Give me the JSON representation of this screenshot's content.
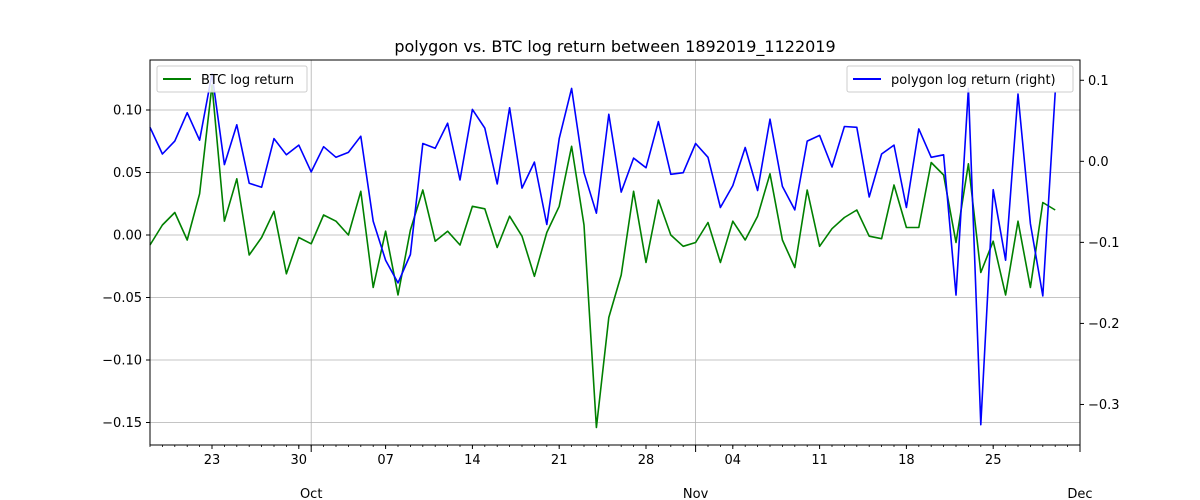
{
  "chart_data": {
    "type": "line",
    "title": "polygon vs. BTC log return between 1892019_1122019",
    "x_start_date": "2019-09-18",
    "x_end_date": "2019-12-02",
    "x_major_ticks": [
      {
        "label": "Oct",
        "date": "2019-10-01"
      },
      {
        "label": "Nov",
        "date": "2019-11-01"
      },
      {
        "label": "Dec",
        "date": "2019-12-02"
      }
    ],
    "x_minor_tick_labels": [
      {
        "label": "23",
        "date": "2019-09-23"
      },
      {
        "label": "30",
        "date": "2019-09-30"
      },
      {
        "label": "07",
        "date": "2019-10-07"
      },
      {
        "label": "14",
        "date": "2019-10-14"
      },
      {
        "label": "21",
        "date": "2019-10-21"
      },
      {
        "label": "28",
        "date": "2019-10-28"
      },
      {
        "label": "04",
        "date": "2019-11-04"
      },
      {
        "label": "11",
        "date": "2019-11-11"
      },
      {
        "label": "18",
        "date": "2019-11-18"
      },
      {
        "label": "25",
        "date": "2019-11-25"
      }
    ],
    "y_left": {
      "ylim": [
        -0.168,
        0.14
      ],
      "ticks": [
        0.1,
        0.05,
        0.0,
        -0.05,
        -0.1,
        -0.15
      ],
      "tick_labels": [
        "0.10",
        "0.05",
        "0.00",
        "−0.05",
        "−0.10",
        "−0.15"
      ]
    },
    "y_right": {
      "ylim": [
        -0.35,
        0.125
      ],
      "ticks": [
        0.1,
        0.0,
        -0.1,
        -0.2,
        -0.3
      ],
      "tick_labels": [
        "0.1",
        "0.0",
        "−0.1",
        "−0.2",
        "−0.3"
      ]
    },
    "grid": true,
    "series": [
      {
        "name": "BTC log return",
        "axis": "left",
        "color": "#008000",
        "legend_position": "upper left",
        "start_date": "2019-09-18",
        "values": [
          -0.008,
          0.008,
          0.018,
          -0.004,
          0.033,
          0.12,
          0.011,
          0.045,
          -0.016,
          -0.002,
          0.019,
          -0.031,
          -0.002,
          -0.007,
          0.016,
          0.011,
          0.0,
          0.035,
          -0.042,
          0.003,
          -0.048,
          0.004,
          0.036,
          -0.005,
          0.003,
          -0.008,
          0.023,
          0.021,
          -0.01,
          0.015,
          -0.001,
          -0.033,
          0.002,
          0.023,
          0.071,
          0.008,
          -0.154,
          -0.066,
          -0.032,
          0.035,
          -0.022,
          0.028,
          0.0,
          -0.009,
          -0.006,
          0.01,
          -0.022,
          0.011,
          -0.004,
          0.015,
          0.049,
          -0.004,
          -0.026,
          0.036,
          -0.009,
          0.005,
          0.014,
          0.02,
          -0.001,
          -0.003,
          0.04,
          0.006,
          0.006,
          0.058,
          0.048,
          -0.006,
          0.057,
          -0.03,
          -0.005,
          -0.048,
          0.011,
          -0.042,
          0.026,
          0.02
        ]
      },
      {
        "name": "polygon log return (right)",
        "axis": "right",
        "color": "#0000ff",
        "legend_position": "upper right",
        "start_date": "2019-09-18",
        "values": [
          0.042,
          0.009,
          0.025,
          0.06,
          0.026,
          0.108,
          -0.004,
          0.045,
          -0.027,
          -0.032,
          0.028,
          0.008,
          0.02,
          -0.013,
          0.018,
          0.005,
          0.011,
          0.031,
          -0.074,
          -0.122,
          -0.15,
          -0.115,
          0.022,
          0.016,
          0.047,
          -0.023,
          0.064,
          0.041,
          -0.028,
          0.066,
          -0.033,
          -0.001,
          -0.078,
          0.028,
          0.09,
          -0.014,
          -0.064,
          0.058,
          -0.038,
          0.004,
          -0.008,
          0.049,
          -0.016,
          -0.014,
          0.022,
          0.005,
          -0.057,
          -0.03,
          0.017,
          -0.036,
          0.052,
          -0.031,
          -0.06,
          0.025,
          0.032,
          -0.007,
          0.043,
          0.042,
          -0.044,
          0.009,
          0.02,
          -0.057,
          0.04,
          0.005,
          0.008,
          -0.165,
          0.09,
          -0.325,
          -0.035,
          -0.122,
          0.083,
          -0.077,
          -0.166,
          0.085
        ]
      }
    ]
  }
}
